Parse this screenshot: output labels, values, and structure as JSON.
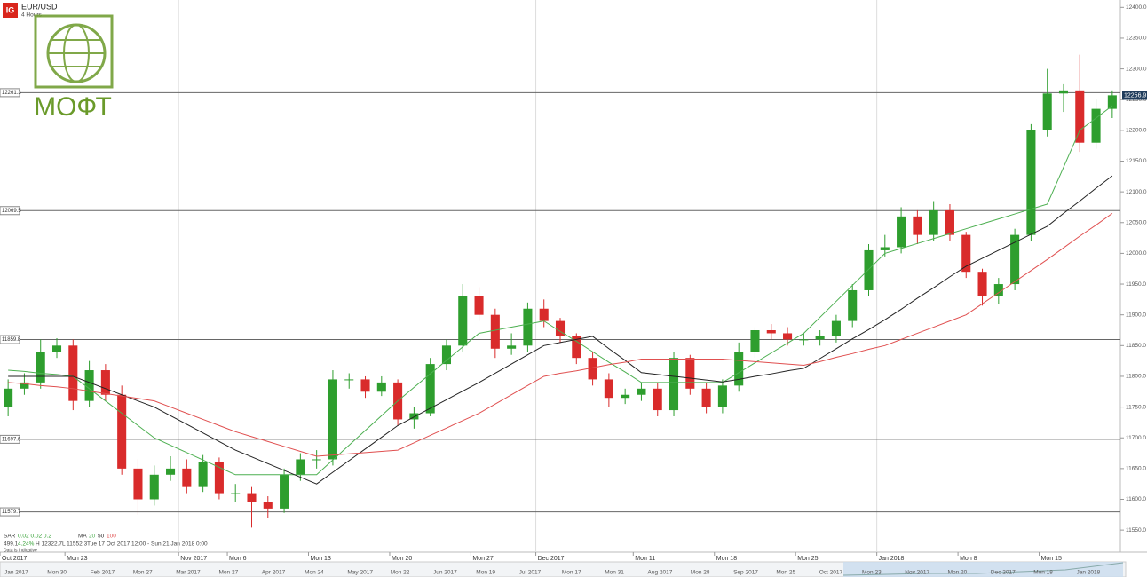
{
  "chart_data": {
    "type": "candlestick",
    "title": "EUR/USD",
    "subtitle": "4 Hours",
    "logo": "IG",
    "watermark": "МОФТ",
    "indicator_sar": "SAR",
    "sar_params": "0.02 0.02 0.2",
    "indicator_ma": "MA",
    "info": [
      "499.1",
      "4.24%",
      "H 12322.7",
      "L 11552.3",
      "Tue 17 Oct 2017 12:00 - Sun 21 Jan 2018 0:00"
    ],
    "disclaimer": "Data is indicative",
    "categories": [
      "Oct 2017",
      null,
      null,
      null,
      "Mon 23",
      null,
      null,
      null,
      null,
      null,
      null,
      "Nov 2017",
      null,
      null,
      "Mon 6",
      null,
      null,
      null,
      null,
      "Mon 13",
      null,
      null,
      null,
      null,
      "Mon 20",
      null,
      null,
      null,
      null,
      "Mon 27",
      null,
      null,
      null,
      "Dec 2017",
      null,
      null,
      null,
      null,
      null,
      "Mon 11",
      null,
      null,
      null,
      null,
      "Mon 18",
      null,
      null,
      null,
      null,
      "Mon 25",
      null,
      null,
      null,
      null,
      "Jan 2018",
      null,
      null,
      null,
      null,
      "Mon 8",
      null,
      null,
      null,
      null,
      "Mon 15",
      null,
      null,
      null,
      null
    ],
    "open": [
      11750,
      11780,
      11790,
      11840,
      11850,
      11760,
      11810,
      11770,
      11650,
      11600,
      11640,
      11650,
      11620,
      11660,
      11610,
      11610,
      11595,
      11585,
      11640,
      11665,
      11665,
      11795,
      11795,
      11775,
      11790,
      11730,
      11740,
      11820,
      11850,
      11930,
      11900,
      11845,
      11850,
      11910,
      11890,
      11865,
      11830,
      11795,
      11765,
      11770,
      11780,
      11745,
      11830,
      11780,
      11750,
      11785,
      11840,
      11875,
      11870,
      11860,
      11860,
      11865,
      11890,
      11940,
      12005,
      12010,
      12060,
      12030,
      12070,
      12030,
      11970,
      11930,
      11950,
      12030,
      12200,
      12260,
      12265,
      12180,
      12235
    ],
    "high": [
      11795,
      11805,
      11860,
      11862,
      11860,
      11825,
      11820,
      11785,
      11665,
      11655,
      11670,
      11665,
      11672,
      11668,
      11625,
      11620,
      11605,
      11650,
      11675,
      11680,
      11810,
      11805,
      11800,
      11800,
      11795,
      11750,
      11830,
      11860,
      11950,
      11945,
      11910,
      11870,
      11920,
      11925,
      11895,
      11870,
      11840,
      11805,
      11780,
      11790,
      11790,
      11840,
      11835,
      11790,
      11795,
      11855,
      11880,
      11885,
      11880,
      11870,
      11875,
      11900,
      11950,
      12015,
      12030,
      12075,
      12070,
      12085,
      12080,
      12035,
      11975,
      11960,
      12040,
      12210,
      12300,
      12275,
      12323,
      12250,
      12265
    ],
    "low": [
      11735,
      11770,
      11780,
      11830,
      11745,
      11750,
      11760,
      11640,
      11575,
      11590,
      11630,
      11610,
      11612,
      11600,
      11595,
      11554,
      11570,
      11578,
      11630,
      11650,
      11655,
      11780,
      11765,
      11768,
      11720,
      11715,
      11735,
      11810,
      11840,
      11890,
      11830,
      11835,
      11840,
      11880,
      11855,
      11820,
      11785,
      11750,
      11755,
      11760,
      11735,
      11735,
      11770,
      11740,
      11740,
      11775,
      11830,
      11860,
      11850,
      11850,
      11850,
      11855,
      11880,
      11930,
      11995,
      12000,
      12015,
      12020,
      12020,
      11960,
      11915,
      11918,
      11940,
      12020,
      12190,
      12230,
      12165,
      12170,
      12220
    ],
    "close": [
      11780,
      11790,
      11840,
      11850,
      11760,
      11810,
      11770,
      11650,
      11600,
      11640,
      11650,
      11620,
      11660,
      11610,
      11610,
      11595,
      11585,
      11640,
      11665,
      11665,
      11795,
      11795,
      11775,
      11790,
      11730,
      11740,
      11820,
      11850,
      11930,
      11900,
      11845,
      11850,
      11910,
      11890,
      11865,
      11830,
      11795,
      11765,
      11770,
      11780,
      11745,
      11830,
      11780,
      11750,
      11785,
      11840,
      11875,
      11870,
      11860,
      11860,
      11865,
      11890,
      11940,
      12005,
      12010,
      12060,
      12030,
      12070,
      12030,
      11970,
      11930,
      11950,
      12030,
      12200,
      12260,
      12265,
      12180,
      12235,
      12257
    ],
    "up_color": "#2e9e2e",
    "down_color": "#d92b2b",
    "series": [
      {
        "name": "20",
        "color": "#4caf50",
        "values": [
          11810,
          11808,
          11805,
          11803,
          11800,
          11780,
          11760,
          11740,
          11720,
          11700,
          11688,
          11676,
          11664,
          11652,
          11640,
          11640,
          11640,
          11640,
          11640,
          11640,
          11664,
          11688,
          11712,
          11736,
          11760,
          11782,
          11804,
          11826,
          11848,
          11870,
          11875,
          11880,
          11885,
          11890,
          11873,
          11857,
          11840,
          11823,
          11807,
          11790,
          11790,
          11790,
          11790,
          11790,
          11790,
          11806,
          11822,
          11838,
          11854,
          11870,
          11896,
          11922,
          11948,
          11974,
          12000,
          12008,
          12016,
          12024,
          12032,
          12040,
          12048,
          12056,
          12064,
          12072,
          12080,
          12140,
          12200,
          12220,
          12240
        ]
      },
      {
        "name": "50",
        "color": "#222222",
        "values": [
          11800,
          11800,
          11800,
          11800,
          11800,
          11790,
          11780,
          11770,
          11760,
          11750,
          11736,
          11722,
          11708,
          11694,
          11680,
          11669,
          11658,
          11647,
          11636,
          11625,
          11644,
          11663,
          11682,
          11701,
          11720,
          11734,
          11748,
          11762,
          11776,
          11790,
          11805,
          11820,
          11835,
          11850,
          11855,
          11860,
          11865,
          11845,
          11826,
          11806,
          11803,
          11800,
          11797,
          11794,
          11791,
          11795,
          11800,
          11804,
          11809,
          11813,
          11829,
          11845,
          11861,
          11876,
          11892,
          11909,
          11927,
          11944,
          11962,
          11979,
          11992,
          12005,
          12018,
          12031,
          12044,
          12065,
          12085,
          12106,
          12126
        ]
      },
      {
        "name": "100",
        "color": "#e05050",
        "values": [
          11790,
          11788,
          11785,
          11783,
          11780,
          11776,
          11772,
          11768,
          11764,
          11760,
          11750,
          11740,
          11730,
          11720,
          11710,
          11702,
          11694,
          11686,
          11678,
          11670,
          11672,
          11674,
          11676,
          11678,
          11680,
          11692,
          11704,
          11716,
          11728,
          11740,
          11755,
          11770,
          11785,
          11800,
          11805,
          11809,
          11814,
          11819,
          11823,
          11828,
          11828,
          11828,
          11828,
          11828,
          11828,
          11826,
          11824,
          11822,
          11820,
          11818,
          11824,
          11831,
          11837,
          11844,
          11850,
          11860,
          11870,
          11880,
          11890,
          11900,
          11918,
          11936,
          11954,
          11972,
          11990,
          12009,
          12028,
          12046,
          12065
        ]
      }
    ],
    "levels": [
      12261.3,
      12069.5,
      11859.8,
      11697.6,
      11579.7
    ],
    "last": 12256.9,
    "ylim": [
      11517,
      12412
    ],
    "yticks": [
      {
        "value": 11550,
        "label": "11550.0"
      },
      {
        "value": 11600,
        "label": "11600.0"
      },
      {
        "value": 11650,
        "label": "11650.0"
      },
      {
        "value": 11700,
        "label": "11700.0"
      },
      {
        "value": 11750,
        "label": "11750.0"
      },
      {
        "value": 11800,
        "label": "11800.0"
      },
      {
        "value": 11850,
        "label": "11850.0"
      },
      {
        "value": 11900,
        "label": "11900.0"
      },
      {
        "value": 11950,
        "label": "11950.0"
      },
      {
        "value": 12000,
        "label": "12000.0"
      },
      {
        "value": 12050,
        "label": "12050.0"
      },
      {
        "value": 12100,
        "label": "12100.0"
      },
      {
        "value": 12150,
        "label": "12150.0"
      },
      {
        "value": 12200,
        "label": "12200.0"
      },
      {
        "value": 12250,
        "label": "12250.0"
      },
      {
        "value": 12300,
        "label": "12300.0"
      },
      {
        "value": 12350,
        "label": "12350.0"
      },
      {
        "value": 12400,
        "label": "12400.0"
      }
    ],
    "grid": false,
    "navigator": [
      "Jan 2017",
      "Mon 30",
      "Feb 2017",
      "Mon 27",
      "Mar 2017",
      "Mon 27",
      "Apr 2017",
      "Mon 24",
      "May 2017",
      "Mon 22",
      "Jun 2017",
      "Mon 19",
      "Jul 2017",
      "Mon 17",
      "Mon 31",
      "Aug 2017",
      "Mon 28",
      "Sep 2017",
      "Mon 25",
      "Oct 2017",
      "Mon 23",
      "Nov 2017",
      "Mon 20",
      "Dec 2017",
      "Mon 18",
      "Jan 2018"
    ]
  }
}
